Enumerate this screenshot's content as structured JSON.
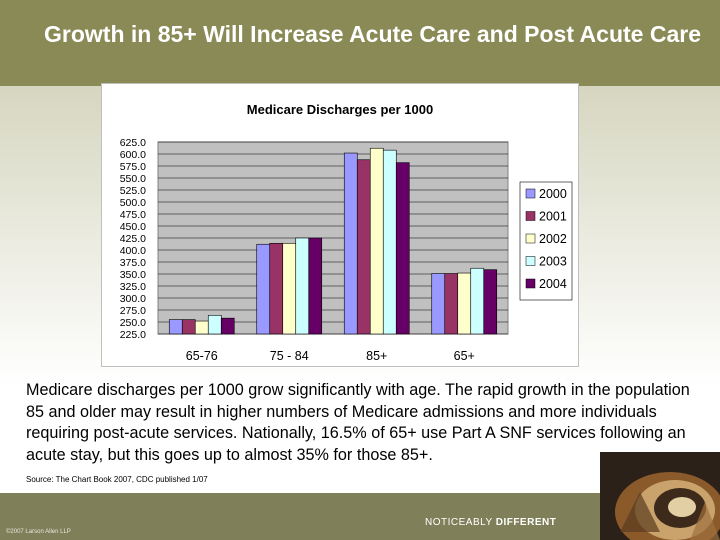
{
  "slide": {
    "title": "Growth in 85+ Will Increase Acute Care and Post Acute Care",
    "body": "Medicare discharges per 1000 grow significantly with age. The rapid growth in the population 85 and older may result in higher numbers of Medicare admissions and more individuals requiring post-acute services. Nationally, 16.5% of 65+ use Part A SNF services following an acute stay, but this goes up to almost 35% for those 85+.",
    "source": "Source:  The Chart Book 2007, CDC published 1/07",
    "copyright": "©2007 Larson Allen LLP",
    "tagline_light": "NOTICEABLY",
    "tagline_bold": "DIFFERENT"
  },
  "colors": {
    "header": "#8a8a57",
    "plot_bg": "#c0c0c0"
  },
  "chart_data": {
    "type": "bar",
    "title": "Medicare Discharges per 1000",
    "categories": [
      "65-76",
      "75 - 84",
      "85+",
      "65+"
    ],
    "ylim": [
      225,
      625
    ],
    "yticks": [
      "625.0",
      "600.0",
      "575.0",
      "550.0",
      "525.0",
      "500.0",
      "475.0",
      "450.0",
      "425.0",
      "400.0",
      "375.0",
      "350.0",
      "325.0",
      "300.0",
      "275.0",
      "250.0",
      "225.0"
    ],
    "grid": true,
    "legend_position": "right",
    "series": [
      {
        "name": "2000",
        "color": "#9999ff",
        "values": [
          255,
          412,
          602,
          351
        ]
      },
      {
        "name": "2001",
        "color": "#993366",
        "values": [
          255,
          414,
          588,
          351
        ]
      },
      {
        "name": "2002",
        "color": "#ffffcc",
        "values": [
          252,
          414,
          612,
          352
        ]
      },
      {
        "name": "2003",
        "color": "#ccffff",
        "values": [
          264,
          425,
          608,
          362
        ]
      },
      {
        "name": "2004",
        "color": "#660066",
        "values": [
          258,
          425,
          582,
          359
        ]
      }
    ]
  }
}
